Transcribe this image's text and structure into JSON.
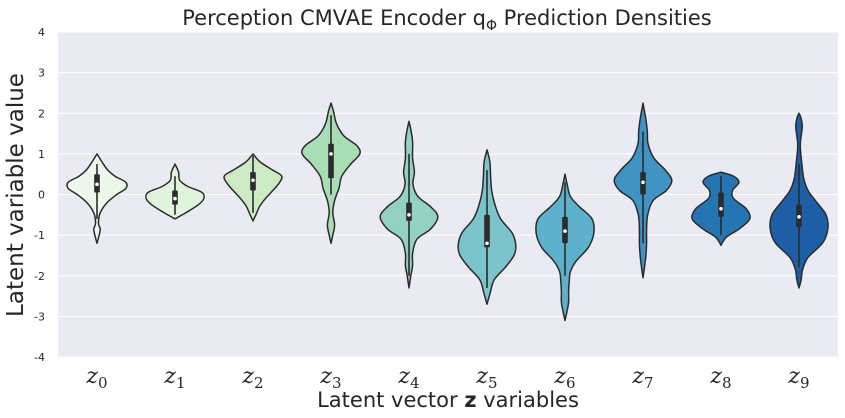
{
  "chart_data": {
    "type": "violin",
    "title": "Perception CMVAE Encoder q",
    "title_symbol": "Φ",
    "title_suffix": " Prediction Densities",
    "ylabel": "Latent variable value",
    "xlabel_prefix": "Latent vector ",
    "xlabel_bold": "z",
    "xlabel_suffix": " variables",
    "ylim": [
      -4,
      4
    ],
    "yticks": [
      -4,
      -3,
      -2,
      -1,
      0,
      1,
      2,
      3,
      4
    ],
    "grid": true,
    "background": "#eaeaf2",
    "gridColor": "#ffffff",
    "outlineColor": "#2b2b2b",
    "categories": [
      {
        "base": "z",
        "sub": "0",
        "color": "#eef8ea",
        "median": 0.25,
        "q1": 0.05,
        "q3": 0.5,
        "wlow": -0.6,
        "whigh": 0.75,
        "profile": [
          [
            -1.2,
            0
          ],
          [
            -1.0,
            0.06
          ],
          [
            -0.85,
            0.09
          ],
          [
            -0.7,
            0.04
          ],
          [
            -0.45,
            0.09
          ],
          [
            -0.2,
            0.28
          ],
          [
            0.0,
            0.55
          ],
          [
            0.15,
            0.8
          ],
          [
            0.3,
            0.8
          ],
          [
            0.45,
            0.5
          ],
          [
            0.6,
            0.3
          ],
          [
            0.8,
            0.14
          ],
          [
            1.0,
            0
          ]
        ]
      },
      {
        "base": "z",
        "sub": "1",
        "color": "#e0f3db",
        "median": -0.1,
        "q1": -0.25,
        "q3": 0.1,
        "wlow": -0.5,
        "whigh": 0.45,
        "profile": [
          [
            -0.6,
            0
          ],
          [
            -0.45,
            0.3
          ],
          [
            -0.25,
            0.65
          ],
          [
            -0.1,
            0.8
          ],
          [
            0.05,
            0.75
          ],
          [
            0.2,
            0.35
          ],
          [
            0.35,
            0.13
          ],
          [
            0.55,
            0.1
          ],
          [
            0.75,
            0
          ]
        ]
      },
      {
        "base": "z",
        "sub": "2",
        "color": "#ccebc5",
        "median": 0.35,
        "q1": 0.1,
        "q3": 0.55,
        "wlow": -0.45,
        "whigh": 0.95,
        "profile": [
          [
            -0.65,
            0
          ],
          [
            -0.5,
            0.08
          ],
          [
            -0.3,
            0.18
          ],
          [
            -0.15,
            0.3
          ],
          [
            0.05,
            0.5
          ],
          [
            0.25,
            0.7
          ],
          [
            0.45,
            0.8
          ],
          [
            0.6,
            0.55
          ],
          [
            0.8,
            0.2
          ],
          [
            1.0,
            0
          ]
        ]
      },
      {
        "base": "z",
        "sub": "3",
        "color": "#a8ddb5",
        "median": 1.0,
        "q1": 0.4,
        "q3": 1.25,
        "wlow": 0.0,
        "whigh": 1.95,
        "profile": [
          [
            -1.2,
            0
          ],
          [
            -1.0,
            0.05
          ],
          [
            -0.75,
            0.1
          ],
          [
            -0.45,
            0.05
          ],
          [
            -0.15,
            0.1
          ],
          [
            0.15,
            0.22
          ],
          [
            0.45,
            0.3
          ],
          [
            0.75,
            0.55
          ],
          [
            1.0,
            0.8
          ],
          [
            1.2,
            0.72
          ],
          [
            1.45,
            0.35
          ],
          [
            1.75,
            0.15
          ],
          [
            2.05,
            0.07
          ],
          [
            2.25,
            0
          ]
        ]
      },
      {
        "base": "z",
        "sub": "4",
        "color": "#93d1c4",
        "median": -0.5,
        "q1": -0.65,
        "q3": -0.2,
        "wlow": -2.0,
        "whigh": 1.0,
        "profile": [
          [
            -2.3,
            0
          ],
          [
            -2.0,
            0.05
          ],
          [
            -1.75,
            0.1
          ],
          [
            -1.45,
            0.1
          ],
          [
            -1.1,
            0.22
          ],
          [
            -0.85,
            0.6
          ],
          [
            -0.55,
            0.8
          ],
          [
            -0.3,
            0.6
          ],
          [
            -0.05,
            0.25
          ],
          [
            0.25,
            0.11
          ],
          [
            0.55,
            0.15
          ],
          [
            0.9,
            0.1
          ],
          [
            1.3,
            0.1
          ],
          [
            1.6,
            0.05
          ],
          [
            1.8,
            0
          ]
        ]
      },
      {
        "base": "z",
        "sub": "5",
        "color": "#7bc4cc",
        "median": -1.2,
        "q1": -1.3,
        "q3": -0.5,
        "wlow": -2.3,
        "whigh": 0.6,
        "profile": [
          [
            -2.7,
            0
          ],
          [
            -2.45,
            0.08
          ],
          [
            -2.1,
            0.2
          ],
          [
            -1.8,
            0.5
          ],
          [
            -1.5,
            0.75
          ],
          [
            -1.25,
            0.8
          ],
          [
            -0.95,
            0.7
          ],
          [
            -0.6,
            0.38
          ],
          [
            -0.25,
            0.22
          ],
          [
            0.1,
            0.13
          ],
          [
            0.45,
            0.1
          ],
          [
            0.8,
            0.08
          ],
          [
            1.1,
            0
          ]
        ]
      },
      {
        "base": "z",
        "sub": "6",
        "color": "#5db1cd",
        "median": -0.9,
        "q1": -1.2,
        "q3": -0.55,
        "wlow": -2.0,
        "whigh": 0.3,
        "profile": [
          [
            -3.1,
            0
          ],
          [
            -2.9,
            0.05
          ],
          [
            -2.65,
            0.1
          ],
          [
            -2.4,
            0.1
          ],
          [
            -2.1,
            0.12
          ],
          [
            -1.9,
            0.15
          ],
          [
            -1.65,
            0.3
          ],
          [
            -1.3,
            0.65
          ],
          [
            -0.95,
            0.8
          ],
          [
            -0.6,
            0.75
          ],
          [
            -0.3,
            0.4
          ],
          [
            -0.05,
            0.15
          ],
          [
            0.25,
            0.06
          ],
          [
            0.5,
            0
          ]
        ]
      },
      {
        "base": "z",
        "sub": "7",
        "color": "#3f94c4",
        "median": 0.3,
        "q1": 0.0,
        "q3": 0.55,
        "wlow": -1.2,
        "whigh": 1.55,
        "profile": [
          [
            -2.05,
            0
          ],
          [
            -1.8,
            0.04
          ],
          [
            -1.5,
            0.08
          ],
          [
            -1.2,
            0.1
          ],
          [
            -0.85,
            0.1
          ],
          [
            -0.5,
            0.13
          ],
          [
            -0.15,
            0.28
          ],
          [
            0.1,
            0.65
          ],
          [
            0.35,
            0.8
          ],
          [
            0.6,
            0.62
          ],
          [
            0.9,
            0.3
          ],
          [
            1.25,
            0.14
          ],
          [
            1.55,
            0.12
          ],
          [
            1.85,
            0.08
          ],
          [
            2.25,
            0
          ]
        ]
      },
      {
        "base": "z",
        "sub": "8",
        "color": "#2475b2",
        "median": -0.35,
        "q1": -0.55,
        "q3": 0.05,
        "wlow": -1.0,
        "whigh": 0.45,
        "profile": [
          [
            -1.25,
            0
          ],
          [
            -1.05,
            0.15
          ],
          [
            -0.85,
            0.5
          ],
          [
            -0.6,
            0.8
          ],
          [
            -0.35,
            0.7
          ],
          [
            -0.1,
            0.35
          ],
          [
            0.1,
            0.32
          ],
          [
            0.3,
            0.5
          ],
          [
            0.45,
            0.35
          ],
          [
            0.55,
            0
          ]
        ]
      },
      {
        "base": "z",
        "sub": "9",
        "color": "#1e5ea6",
        "median": -0.55,
        "q1": -0.8,
        "q3": -0.25,
        "wlow": -1.8,
        "whigh": 0.75,
        "profile": [
          [
            -2.3,
            0
          ],
          [
            -2.1,
            0.06
          ],
          [
            -1.85,
            0.1
          ],
          [
            -1.55,
            0.25
          ],
          [
            -1.2,
            0.65
          ],
          [
            -0.85,
            0.8
          ],
          [
            -0.5,
            0.75
          ],
          [
            -0.2,
            0.5
          ],
          [
            0.1,
            0.25
          ],
          [
            0.4,
            0.13
          ],
          [
            0.75,
            0.08
          ],
          [
            1.1,
            0.04
          ],
          [
            1.3,
            0.04
          ],
          [
            1.5,
            0.07
          ],
          [
            1.7,
            0.09
          ],
          [
            1.9,
            0.05
          ],
          [
            2.0,
            0
          ]
        ]
      }
    ]
  }
}
